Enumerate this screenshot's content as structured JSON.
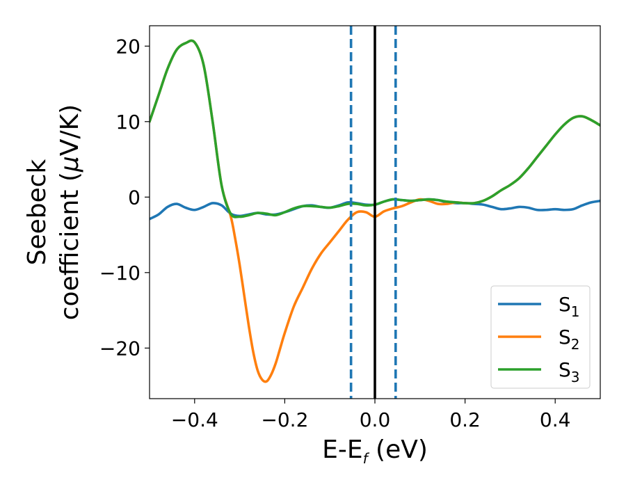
{
  "chart_data": {
    "type": "line",
    "xlabel": {
      "base": "E-E",
      "sub": "f",
      "rest": " (eV)"
    },
    "ylabel": {
      "line1": "Seebeck",
      "line2_pre": "coefficient  (",
      "mu": "μ",
      "line2_post": "V/K)"
    },
    "xlim": [
      -0.5,
      0.5
    ],
    "ylim": [
      -26.7,
      22.7
    ],
    "xticks": [
      -0.4,
      -0.2,
      0.0,
      0.2,
      0.4
    ],
    "xtick_labels": [
      "−0.4",
      "−0.2",
      "0.0",
      "0.2",
      "0.4"
    ],
    "yticks": [
      -20,
      -10,
      0,
      10,
      20
    ],
    "ytick_labels": [
      "−20",
      "−10",
      "0",
      "10",
      "20"
    ],
    "grid": false,
    "legend_position": "lower-right",
    "vlines": [
      {
        "x": -0.053,
        "style": "dashed",
        "color": "#1f77b4"
      },
      {
        "x": 0.0,
        "style": "solid",
        "color": "#000000"
      },
      {
        "x": 0.046,
        "style": "dashed",
        "color": "#1f77b4"
      }
    ],
    "series": [
      {
        "name_base": "S",
        "name_sub": "1",
        "color": "#1f77b4",
        "x": [
          -0.5,
          -0.48,
          -0.46,
          -0.44,
          -0.42,
          -0.4,
          -0.38,
          -0.36,
          -0.34,
          -0.32,
          -0.3,
          -0.28,
          -0.26,
          -0.24,
          -0.22,
          -0.2,
          -0.18,
          -0.16,
          -0.14,
          -0.12,
          -0.1,
          -0.08,
          -0.06,
          -0.04,
          -0.02,
          0.0,
          0.02,
          0.04,
          0.06,
          0.08,
          0.1,
          0.12,
          0.14,
          0.16,
          0.18,
          0.2,
          0.22,
          0.24,
          0.26,
          0.28,
          0.3,
          0.32,
          0.34,
          0.36,
          0.38,
          0.4,
          0.42,
          0.44,
          0.46,
          0.48,
          0.5
        ],
        "y": [
          -2.9,
          -2.3,
          -1.3,
          -0.9,
          -1.4,
          -1.7,
          -1.3,
          -0.8,
          -1.1,
          -2.2,
          -2.5,
          -2.3,
          -2.1,
          -2.3,
          -2.3,
          -2.0,
          -1.6,
          -1.2,
          -1.1,
          -1.3,
          -1.4,
          -1.1,
          -0.7,
          -0.8,
          -1.0,
          -1.0,
          -0.6,
          -0.3,
          -0.4,
          -0.5,
          -0.4,
          -0.3,
          -0.4,
          -0.7,
          -0.8,
          -0.8,
          -0.9,
          -1.0,
          -1.3,
          -1.6,
          -1.5,
          -1.3,
          -1.4,
          -1.7,
          -1.7,
          -1.6,
          -1.7,
          -1.6,
          -1.1,
          -0.7,
          -0.5
        ]
      },
      {
        "name_base": "S",
        "name_sub": "2",
        "color": "#ff7f0e",
        "x": [
          -0.5,
          -0.48,
          -0.46,
          -0.44,
          -0.42,
          -0.4,
          -0.38,
          -0.36,
          -0.34,
          -0.32,
          -0.31,
          -0.3,
          -0.29,
          -0.28,
          -0.27,
          -0.26,
          -0.25,
          -0.24,
          -0.23,
          -0.22,
          -0.21,
          -0.2,
          -0.18,
          -0.16,
          -0.14,
          -0.12,
          -0.1,
          -0.08,
          -0.06,
          -0.04,
          -0.02,
          0.0,
          0.02,
          0.04,
          0.06,
          0.08,
          0.1,
          0.12,
          0.14,
          0.16,
          0.18,
          0.2,
          0.22,
          0.24,
          0.26,
          0.28,
          0.3,
          0.32,
          0.34,
          0.36,
          0.38,
          0.4,
          0.42,
          0.44,
          0.46,
          0.48,
          0.5
        ],
        "y": [
          10.0,
          13.5,
          17.0,
          19.5,
          20.4,
          20.5,
          17.5,
          10.0,
          1.5,
          -2.5,
          -5.5,
          -9.0,
          -13.0,
          -17.0,
          -20.5,
          -23.0,
          -24.2,
          -24.4,
          -23.5,
          -22.0,
          -20.0,
          -18.0,
          -14.5,
          -12.0,
          -9.5,
          -7.5,
          -6.0,
          -4.5,
          -3.0,
          -2.0,
          -2.0,
          -2.6,
          -1.9,
          -1.5,
          -1.2,
          -0.7,
          -0.3,
          -0.5,
          -0.9,
          -0.9,
          -0.7,
          -0.8,
          -0.8,
          -0.5,
          0.1,
          0.9,
          1.6,
          2.5,
          3.8,
          5.3,
          6.8,
          8.3,
          9.6,
          10.5,
          10.7,
          10.2,
          9.5
        ]
      },
      {
        "name_base": "S",
        "name_sub": "3",
        "color": "#2ca02c",
        "x": [
          -0.5,
          -0.48,
          -0.46,
          -0.44,
          -0.42,
          -0.4,
          -0.38,
          -0.36,
          -0.34,
          -0.32,
          -0.3,
          -0.28,
          -0.26,
          -0.24,
          -0.22,
          -0.2,
          -0.18,
          -0.16,
          -0.14,
          -0.12,
          -0.1,
          -0.08,
          -0.06,
          -0.04,
          -0.02,
          0.0,
          0.02,
          0.04,
          0.06,
          0.08,
          0.1,
          0.12,
          0.14,
          0.16,
          0.18,
          0.2,
          0.22,
          0.24,
          0.26,
          0.28,
          0.3,
          0.32,
          0.34,
          0.36,
          0.38,
          0.4,
          0.42,
          0.44,
          0.46,
          0.48,
          0.5
        ],
        "y": [
          10.0,
          13.5,
          17.0,
          19.5,
          20.4,
          20.5,
          17.5,
          10.0,
          1.5,
          -2.2,
          -2.6,
          -2.4,
          -2.1,
          -2.2,
          -2.4,
          -2.0,
          -1.5,
          -1.2,
          -1.2,
          -1.3,
          -1.4,
          -1.2,
          -0.9,
          -0.9,
          -1.1,
          -1.0,
          -0.6,
          -0.3,
          -0.4,
          -0.5,
          -0.4,
          -0.3,
          -0.4,
          -0.6,
          -0.7,
          -0.8,
          -0.8,
          -0.5,
          0.1,
          0.9,
          1.6,
          2.5,
          3.8,
          5.3,
          6.8,
          8.3,
          9.6,
          10.5,
          10.7,
          10.2,
          9.5
        ]
      }
    ]
  }
}
